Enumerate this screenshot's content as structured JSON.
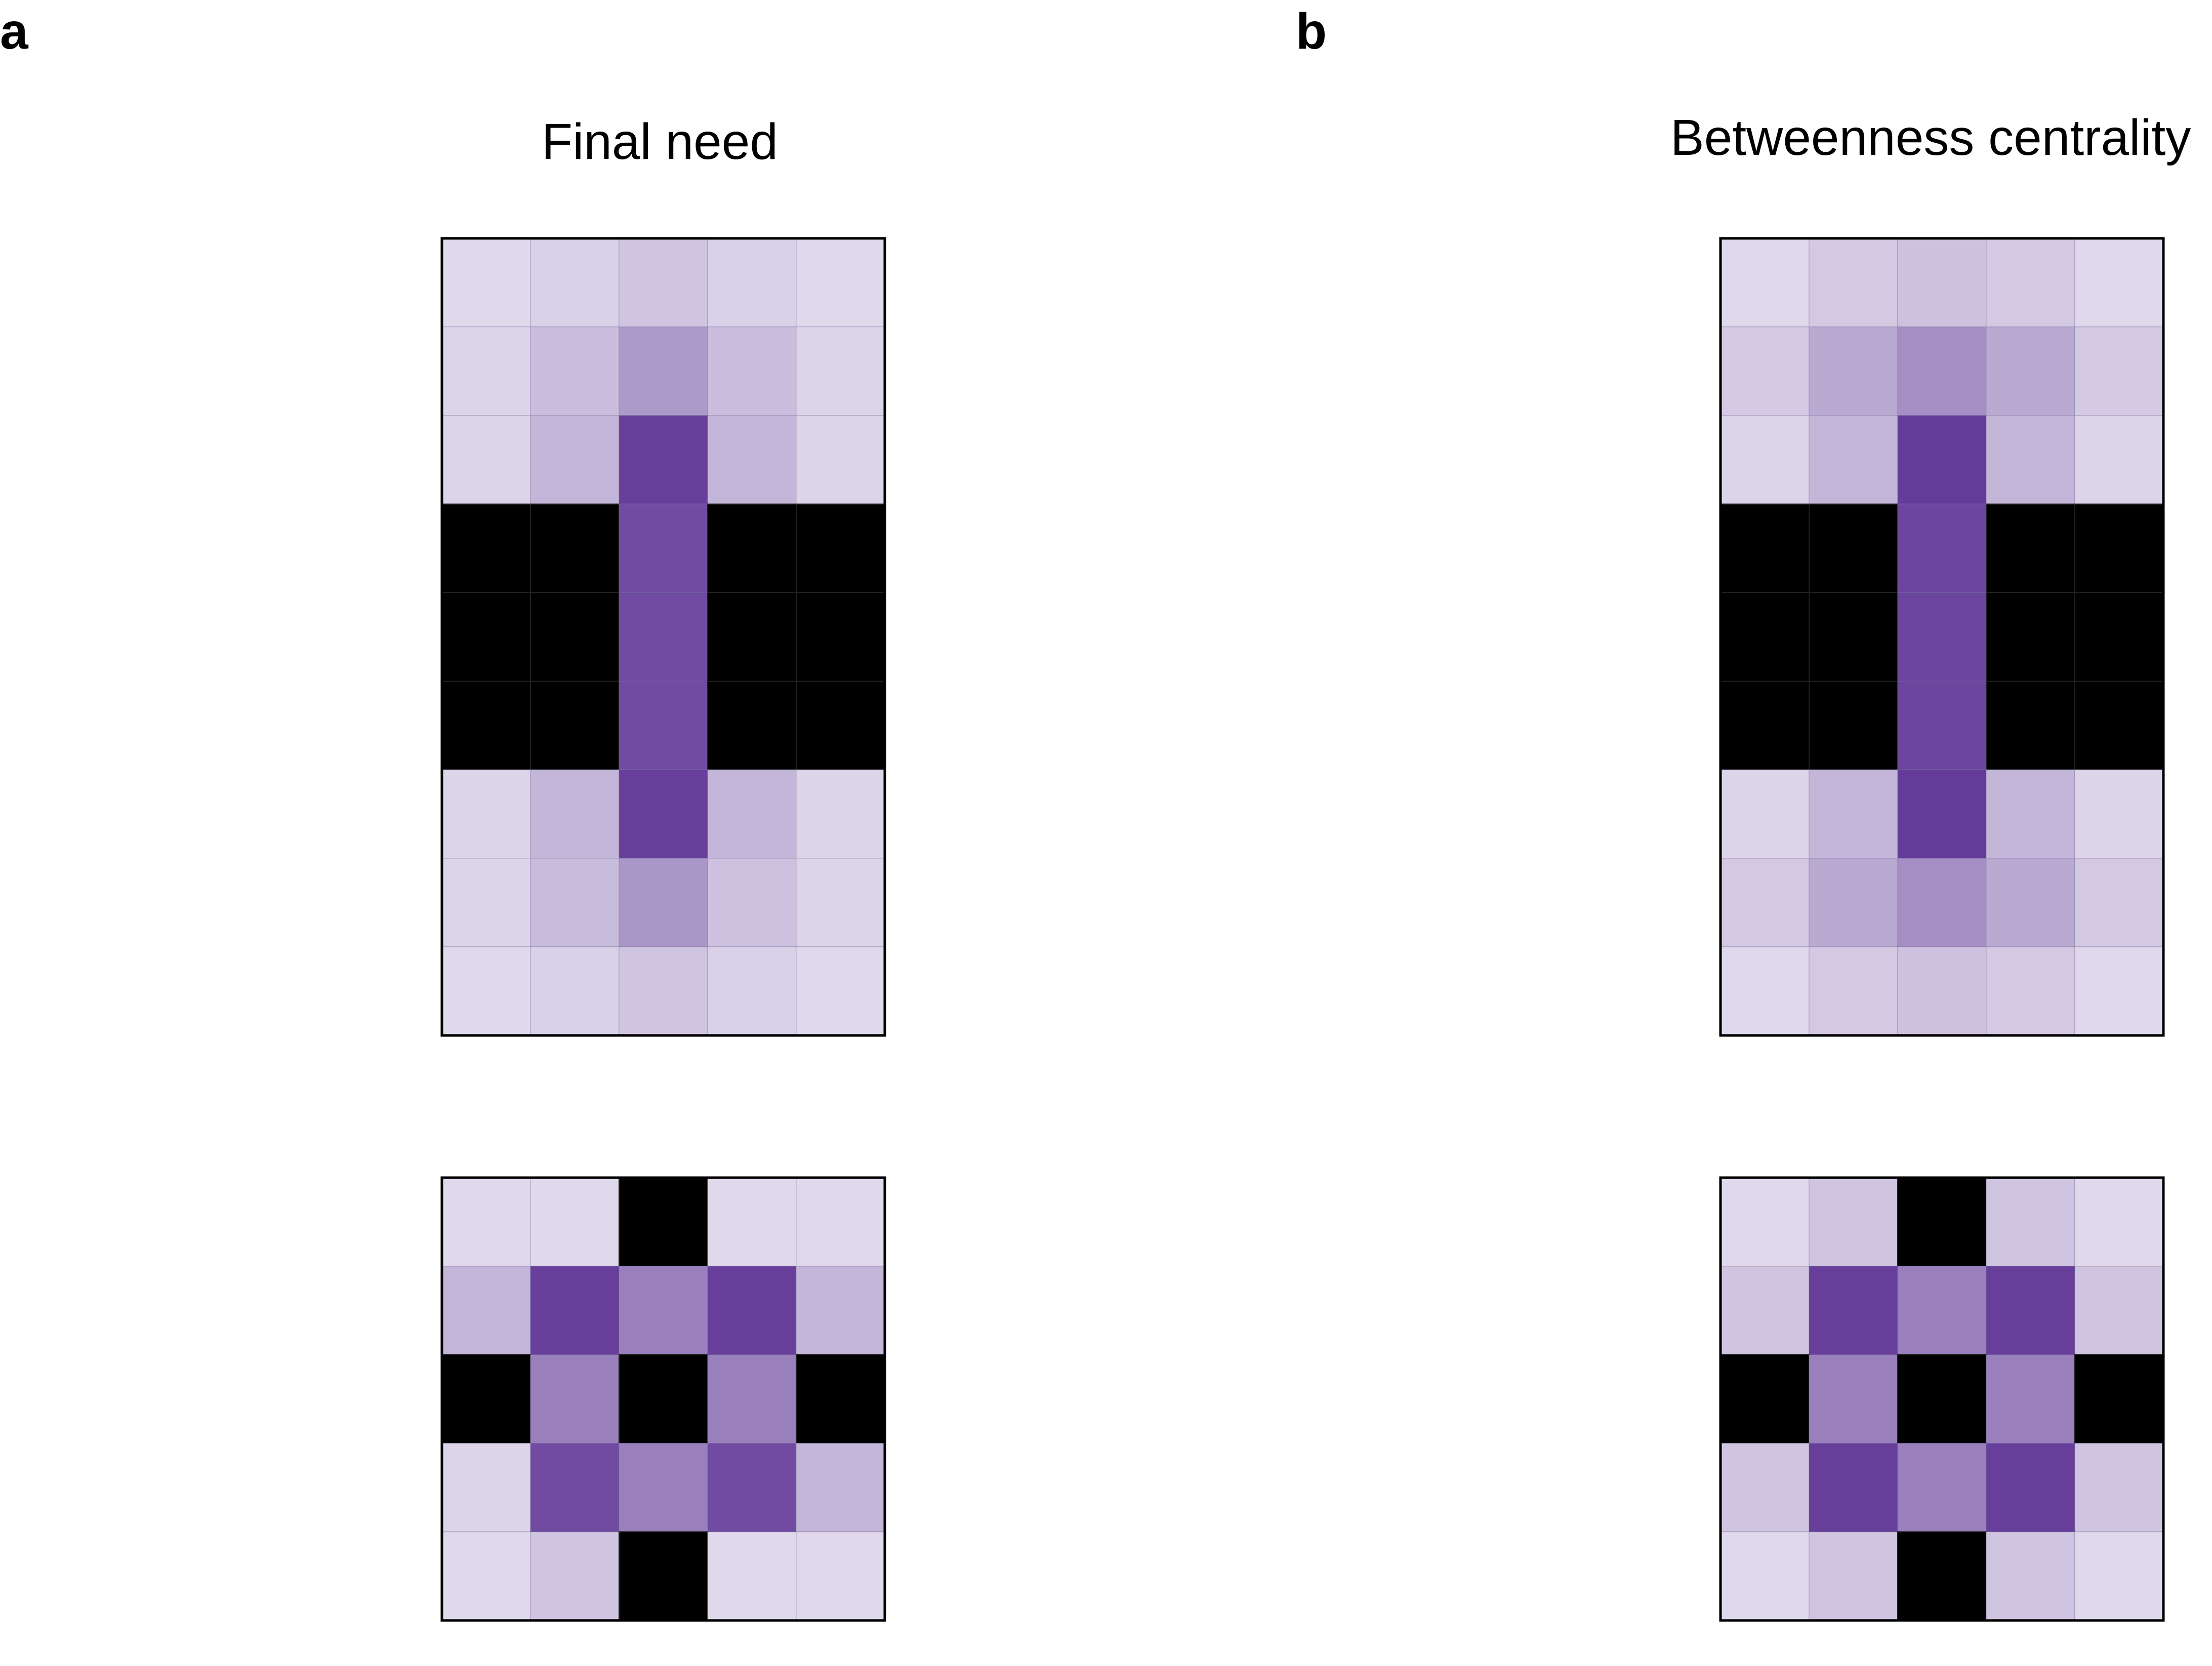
{
  "panels": [
    {
      "letter": "a",
      "title": "Final need"
    },
    {
      "letter": "b",
      "title": "Betweenness centrality"
    }
  ],
  "chart_data": [
    {
      "type": "heatmap",
      "panel": "a",
      "title": "Final need",
      "grid": "9x5",
      "obstacle_color": "#000000",
      "colormap": "Purples",
      "values": [
        [
          0.1,
          0.14,
          0.2,
          0.14,
          0.1
        ],
        [
          0.12,
          0.24,
          0.42,
          0.24,
          0.12
        ],
        [
          0.12,
          0.28,
          0.88,
          0.28,
          0.12
        ],
        [
          null,
          null,
          0.82,
          null,
          null
        ],
        [
          null,
          null,
          0.82,
          null,
          null
        ],
        [
          null,
          null,
          0.82,
          null,
          null
        ],
        [
          0.12,
          0.28,
          0.88,
          0.28,
          0.12
        ],
        [
          0.12,
          0.25,
          0.44,
          0.22,
          0.12
        ],
        [
          0.1,
          0.14,
          0.2,
          0.14,
          0.1
        ]
      ]
    },
    {
      "type": "heatmap",
      "panel": "a",
      "title": "",
      "grid": "5x5",
      "obstacle_color": "#000000",
      "colormap": "Purples",
      "values": [
        [
          0.1,
          0.1,
          null,
          0.1,
          0.1
        ],
        [
          0.28,
          0.88,
          0.55,
          0.88,
          0.28
        ],
        [
          null,
          0.55,
          null,
          0.55,
          null
        ],
        [
          0.12,
          0.82,
          0.55,
          0.82,
          0.28
        ],
        [
          0.1,
          0.2,
          null,
          0.1,
          0.1
        ]
      ]
    },
    {
      "type": "heatmap",
      "panel": "b",
      "title": "Betweenness centrality",
      "grid": "9x5",
      "obstacle_color": "#000000",
      "colormap": "Purples",
      "values": [
        [
          0.1,
          0.18,
          0.22,
          0.18,
          0.1
        ],
        [
          0.18,
          0.34,
          0.48,
          0.34,
          0.18
        ],
        [
          0.12,
          0.28,
          0.9,
          0.28,
          0.12
        ],
        [
          null,
          null,
          0.85,
          null,
          null
        ],
        [
          null,
          null,
          0.85,
          null,
          null
        ],
        [
          null,
          null,
          0.85,
          null,
          null
        ],
        [
          0.12,
          0.28,
          0.9,
          0.28,
          0.12
        ],
        [
          0.18,
          0.34,
          0.48,
          0.34,
          0.18
        ],
        [
          0.1,
          0.18,
          0.22,
          0.18,
          0.1
        ]
      ]
    },
    {
      "type": "heatmap",
      "panel": "b",
      "title": "",
      "grid": "5x5",
      "obstacle_color": "#000000",
      "colormap": "Purples",
      "values": [
        [
          0.1,
          0.2,
          null,
          0.2,
          0.1
        ],
        [
          0.2,
          0.88,
          0.55,
          0.88,
          0.2
        ],
        [
          null,
          0.55,
          null,
          0.55,
          null
        ],
        [
          0.2,
          0.88,
          0.55,
          0.88,
          0.2
        ],
        [
          0.1,
          0.2,
          null,
          0.2,
          0.1
        ]
      ]
    }
  ]
}
